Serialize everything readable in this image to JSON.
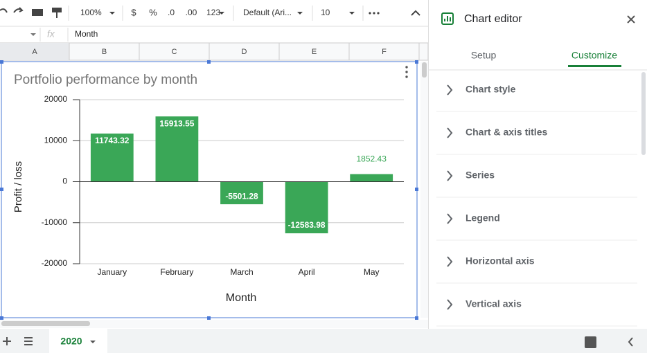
{
  "toolbar": {
    "zoom": "100%",
    "currency": "$",
    "percent": "%",
    "decrease_decimal": ".0",
    "increase_decimal": ".00",
    "number_format": "123",
    "font": "Default (Ari...",
    "font_size": "10"
  },
  "formula_bar": {
    "content": "Month"
  },
  "columns": [
    "A",
    "B",
    "C",
    "D",
    "E",
    "F"
  ],
  "chart_data": {
    "type": "bar",
    "title": "Portfolio performance by month",
    "categories": [
      "January",
      "February",
      "March",
      "April",
      "May"
    ],
    "values": [
      11743.32,
      15913.55,
      -5501.28,
      -12583.98,
      1852.43
    ],
    "color": "#3aa757",
    "ylim": [
      -20000,
      20000
    ],
    "yticks": [
      -20000,
      -10000,
      0,
      10000,
      20000
    ],
    "grid": true,
    "y_label": "Profit / loss",
    "x_label": "Month"
  },
  "editor": {
    "title": "Chart editor",
    "tabs": [
      "Setup",
      "Customize"
    ],
    "sections": [
      "Chart style",
      "Chart & axis titles",
      "Series",
      "Legend",
      "Horizontal axis",
      "Vertical axis"
    ]
  },
  "sheet_tab": "2020"
}
